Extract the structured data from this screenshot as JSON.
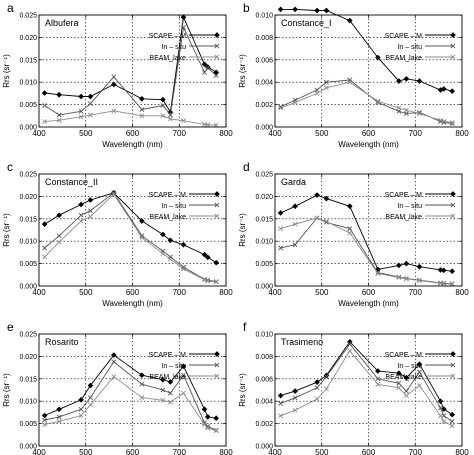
{
  "figure": {
    "axis_xlabel": "Wavelength (nm)",
    "axis_ylabel": "Rrs (sr⁻¹)"
  },
  "series_style": [
    {
      "name": "SCAPE – M",
      "marker": "diamond",
      "color": "#000000"
    },
    {
      "name": "In – situ",
      "marker": "x",
      "color": "#555555"
    },
    {
      "name": "BEAM_lake",
      "marker": "x",
      "color": "#8c8c8c"
    }
  ],
  "chart_data": [
    {
      "type": "line",
      "letter": "a",
      "site": "Albufera",
      "xlabel": "Wavelength (nm)",
      "ylabel": "Rrs (sr⁻¹)",
      "xlim": [
        400,
        800
      ],
      "ylim": [
        0,
        0.025
      ],
      "xticks": [
        "400",
        "500",
        "600",
        "700",
        "800"
      ],
      "yticks": [
        "0.000",
        "0.005",
        "0.010",
        "0.015",
        "0.020",
        "0.025"
      ],
      "grid": true,
      "legend": "top-right",
      "series": [
        {
          "name": "SCAPE – M",
          "x": [
            412,
            443,
            490,
            510,
            560,
            620,
            665,
            681,
            709,
            754,
            761,
            779
          ],
          "values": [
            0.0076,
            0.0072,
            0.0068,
            0.0068,
            0.0095,
            0.0063,
            0.0061,
            0.0033,
            0.0245,
            0.014,
            0.0134,
            0.0122
          ]
        },
        {
          "name": "In – situ",
          "x": [
            412,
            443,
            490,
            510,
            560,
            620,
            665,
            681,
            709,
            754,
            761,
            779
          ],
          "values": [
            0.0048,
            0.0027,
            0.0035,
            0.0052,
            0.0112,
            0.0039,
            0.0048,
            0.0027,
            0.0222,
            0.0122,
            0.0132,
            0.0115
          ]
        },
        {
          "name": "BEAM_lake",
          "x": [
            412,
            443,
            490,
            510,
            560,
            620,
            665,
            681,
            709,
            754,
            761,
            779
          ],
          "values": [
            0.0012,
            0.0015,
            0.0023,
            0.0027,
            0.0036,
            0.0025,
            0.0025,
            0.0018,
            0.0014,
            0.0006,
            0.0005,
            0.0004
          ]
        }
      ]
    },
    {
      "type": "line",
      "letter": "b",
      "site": "Constance_I",
      "xlabel": "Wavelength (nm)",
      "ylabel": "Rrs (sr⁻¹)",
      "xlim": [
        400,
        800
      ],
      "ylim": [
        0,
        0.01
      ],
      "xticks": [
        "400",
        "500",
        "600",
        "700",
        "800"
      ],
      "yticks": [
        "0.000",
        "0.002",
        "0.004",
        "0.006",
        "0.008",
        "0.010"
      ],
      "grid": true,
      "legend": "top-right",
      "series": [
        {
          "name": "SCAPE – M",
          "x": [
            412,
            443,
            490,
            510,
            560,
            620,
            665,
            681,
            709,
            754,
            761,
            779
          ],
          "values": [
            0.0105,
            0.0105,
            0.0104,
            0.0104,
            0.0095,
            0.0062,
            0.0041,
            0.0043,
            0.0041,
            0.0033,
            0.0034,
            0.0032
          ]
        },
        {
          "name": "In – situ",
          "x": [
            412,
            443,
            490,
            510,
            560,
            620,
            665,
            681,
            709,
            754,
            761,
            779
          ],
          "values": [
            0.0018,
            0.0024,
            0.0033,
            0.004,
            0.0042,
            0.0022,
            0.0014,
            0.0012,
            0.0013,
            0.0005,
            0.0004,
            0.0003
          ]
        },
        {
          "name": "BEAM_lake",
          "x": [
            412,
            443,
            490,
            510,
            560,
            620,
            665,
            681,
            709,
            754,
            761,
            779
          ],
          "values": [
            0.0017,
            0.0022,
            0.003,
            0.0035,
            0.004,
            0.0023,
            0.0017,
            0.0015,
            0.0012,
            0.0006,
            0.0005,
            0.0004
          ]
        }
      ]
    },
    {
      "type": "line",
      "letter": "c",
      "site": "Constance_II",
      "xlabel": "Wavelength (nm)",
      "ylabel": "Rrs (sr⁻¹)",
      "xlim": [
        400,
        800
      ],
      "ylim": [
        0,
        0.025
      ],
      "xticks": [
        "400",
        "500",
        "600",
        "700",
        "800"
      ],
      "yticks": [
        "0.000",
        "0.005",
        "0.010",
        "0.015",
        "0.020",
        "0.025"
      ],
      "grid": true,
      "legend": "top-right",
      "series": [
        {
          "name": "SCAPE – M",
          "x": [
            412,
            443,
            490,
            510,
            560,
            620,
            665,
            681,
            709,
            754,
            761,
            779
          ],
          "values": [
            0.0138,
            0.0158,
            0.0182,
            0.0192,
            0.0208,
            0.0145,
            0.0115,
            0.0102,
            0.0092,
            0.007,
            0.0064,
            0.0052
          ]
        },
        {
          "name": "In – situ",
          "x": [
            412,
            443,
            490,
            510,
            560,
            620,
            665,
            681,
            709,
            754,
            761,
            779
          ],
          "values": [
            0.0085,
            0.0112,
            0.0158,
            0.0168,
            0.0208,
            0.0112,
            0.0078,
            0.0065,
            0.0042,
            0.0015,
            0.0013,
            0.001
          ]
        },
        {
          "name": "BEAM_lake",
          "x": [
            412,
            443,
            490,
            510,
            560,
            620,
            665,
            681,
            709,
            754,
            761,
            779
          ],
          "values": [
            0.0065,
            0.0098,
            0.0145,
            0.0155,
            0.0205,
            0.0108,
            0.0072,
            0.006,
            0.0038,
            0.0014,
            0.0011,
            0.0009
          ]
        }
      ]
    },
    {
      "type": "line",
      "letter": "d",
      "site": "Garda",
      "xlabel": "Wavelength (nm)",
      "ylabel": "Rrs (sr⁻¹)",
      "xlim": [
        400,
        800
      ],
      "ylim": [
        0,
        0.025
      ],
      "xticks": [
        "400",
        "500",
        "600",
        "700",
        "800"
      ],
      "yticks": [
        "0.000",
        "0.005",
        "0.010",
        "0.015",
        "0.020",
        "0.025"
      ],
      "grid": true,
      "legend": "top-right",
      "series": [
        {
          "name": "SCAPE – M",
          "x": [
            412,
            443,
            490,
            510,
            560,
            620,
            665,
            681,
            709,
            754,
            761,
            779
          ],
          "values": [
            0.0163,
            0.0178,
            0.0203,
            0.0195,
            0.0178,
            0.0037,
            0.0046,
            0.005,
            0.0043,
            0.0036,
            0.0035,
            0.0033
          ]
        },
        {
          "name": "In – situ",
          "x": [
            412,
            443,
            490,
            510,
            560,
            620,
            665,
            681,
            709,
            754,
            761,
            779
          ],
          "values": [
            0.0085,
            0.0092,
            0.0152,
            0.0142,
            0.0128,
            0.003,
            0.002,
            0.0017,
            0.0013,
            0.0007,
            0.0006,
            0.0005
          ]
        },
        {
          "name": "BEAM_lake",
          "x": [
            412,
            443,
            490,
            510,
            560,
            620,
            665,
            681,
            709,
            754,
            761,
            779
          ],
          "values": [
            0.0128,
            0.0138,
            0.0152,
            0.0144,
            0.0118,
            0.0028,
            0.0019,
            0.0016,
            0.0012,
            0.0006,
            0.0005,
            0.0004
          ]
        }
      ]
    },
    {
      "type": "line",
      "letter": "e",
      "site": "Rosarito",
      "xlabel": "Wavelength (nm)",
      "ylabel": "Rrs (sr⁻¹)",
      "xlim": [
        400,
        800
      ],
      "ylim": [
        0,
        0.025
      ],
      "xticks": [
        "400",
        "500",
        "600",
        "700",
        "800"
      ],
      "yticks": [
        "0.000",
        "0.005",
        "0.010",
        "0.015",
        "0.020",
        "0.025"
      ],
      "grid": true,
      "legend": "top-right",
      "series": [
        {
          "name": "SCAPE – M",
          "x": [
            412,
            443,
            490,
            510,
            560,
            620,
            665,
            681,
            709,
            754,
            761,
            779
          ],
          "values": [
            0.0068,
            0.0082,
            0.0103,
            0.0135,
            0.0203,
            0.0158,
            0.0148,
            0.0143,
            0.0178,
            0.0082,
            0.0065,
            0.0062
          ]
        },
        {
          "name": "In – situ",
          "x": [
            412,
            443,
            490,
            510,
            560,
            620,
            665,
            681,
            709,
            754,
            761,
            779
          ],
          "values": [
            0.0058,
            0.0065,
            0.0082,
            0.0108,
            0.0188,
            0.0138,
            0.0125,
            0.0118,
            0.0158,
            0.0052,
            0.0044,
            0.0035
          ]
        },
        {
          "name": "BEAM_lake",
          "x": [
            412,
            443,
            490,
            510,
            560,
            620,
            665,
            681,
            709,
            754,
            761,
            779
          ],
          "values": [
            0.0048,
            0.0055,
            0.0068,
            0.0092,
            0.0155,
            0.0108,
            0.0102,
            0.0098,
            0.0118,
            0.0048,
            0.004,
            0.0034
          ]
        }
      ]
    },
    {
      "type": "line",
      "letter": "f",
      "site": "Trasimeno",
      "xlabel": "Wavelength (nm)",
      "ylabel": "Rrs (sr⁻¹)",
      "xlim": [
        400,
        800
      ],
      "ylim": [
        0,
        0.01
      ],
      "xticks": [
        "400",
        "500",
        "600",
        "700",
        "800"
      ],
      "yticks": [
        "0.000",
        "0.002",
        "0.004",
        "0.006",
        "0.008",
        "0.010"
      ],
      "grid": true,
      "legend": "top-right",
      "series": [
        {
          "name": "SCAPE – M",
          "x": [
            412,
            443,
            490,
            510,
            560,
            620,
            665,
            681,
            709,
            754,
            761,
            779
          ],
          "values": [
            0.0045,
            0.0049,
            0.0057,
            0.0063,
            0.0093,
            0.0067,
            0.0065,
            0.0061,
            0.0073,
            0.004,
            0.0033,
            0.0028
          ]
        },
        {
          "name": "In – situ",
          "x": [
            412,
            443,
            490,
            510,
            560,
            620,
            665,
            681,
            709,
            754,
            761,
            779
          ],
          "values": [
            0.0038,
            0.0043,
            0.0052,
            0.0062,
            0.0091,
            0.006,
            0.0056,
            0.0049,
            0.0066,
            0.0034,
            0.0027,
            0.0022
          ]
        },
        {
          "name": "BEAM_lake",
          "x": [
            412,
            443,
            490,
            510,
            560,
            620,
            665,
            681,
            709,
            754,
            761,
            779
          ],
          "values": [
            0.0027,
            0.0032,
            0.0042,
            0.0051,
            0.0085,
            0.0055,
            0.0052,
            0.0045,
            0.0054,
            0.0027,
            0.0022,
            0.0018
          ]
        }
      ]
    }
  ]
}
